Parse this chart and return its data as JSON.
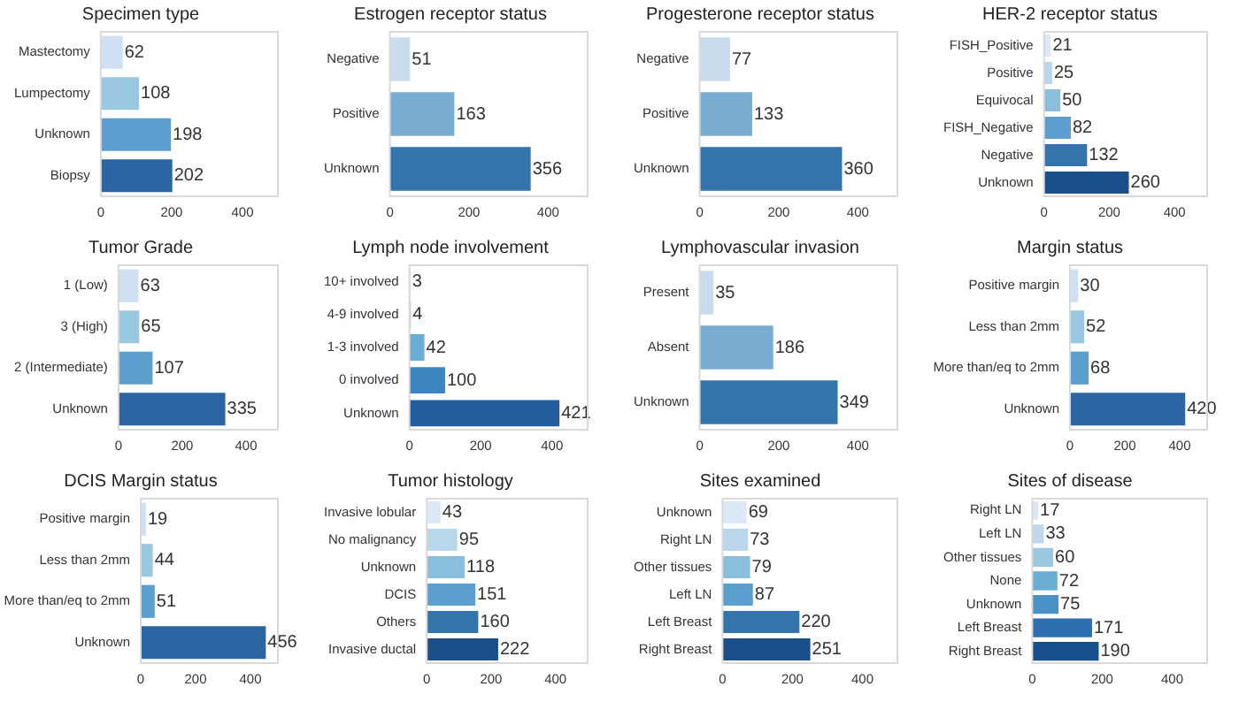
{
  "chart_data": [
    {
      "type": "bar",
      "orientation": "horizontal",
      "title": "Specimen type",
      "categories": [
        "Mastectomy",
        "Lumpectomy",
        "Unknown",
        "Biopsy"
      ],
      "values": [
        62,
        108,
        198,
        202
      ],
      "colors": [
        "#cee0f2",
        "#9ac8e0",
        "#5a9fcd",
        "#2b65a3"
      ],
      "xlim": [
        0,
        500
      ],
      "xticks": [
        0,
        200,
        400
      ],
      "data_labels": true,
      "grid": false
    },
    {
      "type": "bar",
      "orientation": "horizontal",
      "title": "Estrogen receptor status",
      "categories": [
        "Negative",
        "Positive",
        "Unknown"
      ],
      "values": [
        51,
        163,
        356
      ],
      "colors": [
        "#c9dcee",
        "#79aed2",
        "#3474ad"
      ],
      "xlim": [
        0,
        500
      ],
      "xticks": [
        0,
        200,
        400
      ],
      "data_labels": true,
      "grid": false
    },
    {
      "type": "bar",
      "orientation": "horizontal",
      "title": "Progesterone receptor status",
      "categories": [
        "Negative",
        "Positive",
        "Unknown"
      ],
      "values": [
        77,
        133,
        360
      ],
      "colors": [
        "#c9dcee",
        "#79aed2",
        "#3474ad"
      ],
      "xlim": [
        0,
        500
      ],
      "xticks": [
        0,
        200,
        400
      ],
      "data_labels": true,
      "grid": false
    },
    {
      "type": "bar",
      "orientation": "horizontal",
      "title": "HER-2 receptor status",
      "categories": [
        "FISH_Positive",
        "Positive",
        "Equivocal",
        "FISH_Negative",
        "Negative",
        "Unknown"
      ],
      "values": [
        21,
        25,
        50,
        82,
        132,
        260
      ],
      "colors": [
        "#dbe9f6",
        "#bad6eb",
        "#89bedc",
        "#5a9fcd",
        "#3474ad",
        "#1b4f8c"
      ],
      "xlim": [
        0,
        500
      ],
      "xticks": [
        0,
        200,
        400
      ],
      "data_labels": true,
      "grid": false
    },
    {
      "type": "bar",
      "orientation": "horizontal",
      "title": "Tumor Grade",
      "categories": [
        "1 (Low)",
        "3 (High)",
        "2 (Intermediate)",
        "Unknown"
      ],
      "values": [
        63,
        65,
        107,
        335
      ],
      "colors": [
        "#cee0f2",
        "#9ac8e0",
        "#5a9fcd",
        "#2b65a3"
      ],
      "xlim": [
        0,
        500
      ],
      "xticks": [
        0,
        200,
        400
      ],
      "data_labels": true,
      "grid": false
    },
    {
      "type": "bar",
      "orientation": "horizontal",
      "title": "Lymph node involvement",
      "categories": [
        "10+ involved",
        "4-9 involved",
        "1-3 involved",
        "0 involved",
        "Unknown"
      ],
      "values": [
        3,
        4,
        42,
        100,
        421
      ],
      "colors": [
        "#d6e6f4",
        "#abd0e6",
        "#6aaed6",
        "#3d85c0",
        "#235d9e"
      ],
      "xlim": [
        0,
        500
      ],
      "xticks": [
        0,
        200,
        400
      ],
      "data_labels": true,
      "grid": false
    },
    {
      "type": "bar",
      "orientation": "horizontal",
      "title": "Lymphovascular invasion",
      "categories": [
        "Present",
        "Absent",
        "Unknown"
      ],
      "values": [
        35,
        186,
        349
      ],
      "colors": [
        "#c9dcee",
        "#79aed2",
        "#3474ad"
      ],
      "xlim": [
        0,
        500
      ],
      "xticks": [
        0,
        200,
        400
      ],
      "data_labels": true,
      "grid": false
    },
    {
      "type": "bar",
      "orientation": "horizontal",
      "title": "Margin status",
      "categories": [
        "Positive margin",
        "Less than 2mm",
        "More than/eq to 2mm",
        "Unknown"
      ],
      "values": [
        30,
        52,
        68,
        420
      ],
      "colors": [
        "#cee0f2",
        "#9ac8e0",
        "#5a9fcd",
        "#2b65a3"
      ],
      "xlim": [
        0,
        500
      ],
      "xticks": [
        0,
        200,
        400
      ],
      "data_labels": true,
      "grid": false
    },
    {
      "type": "bar",
      "orientation": "horizontal",
      "title": "DCIS Margin status",
      "categories": [
        "Positive margin",
        "Less than 2mm",
        "More than/eq to 2mm",
        "Unknown"
      ],
      "values": [
        19,
        44,
        51,
        456
      ],
      "colors": [
        "#cee0f2",
        "#9ac8e0",
        "#5a9fcd",
        "#2b65a3"
      ],
      "xlim": [
        0,
        500
      ],
      "xticks": [
        0,
        200,
        400
      ],
      "data_labels": true,
      "grid": false
    },
    {
      "type": "bar",
      "orientation": "horizontal",
      "title": "Tumor histology",
      "categories": [
        "Invasive lobular",
        "No malignancy",
        "Unknown",
        "DCIS",
        "Others",
        "Invasive ductal"
      ],
      "values": [
        43,
        95,
        118,
        151,
        160,
        222
      ],
      "colors": [
        "#dbe9f6",
        "#bad6eb",
        "#89bedc",
        "#5a9fcd",
        "#3474ad",
        "#1b4f8c"
      ],
      "xlim": [
        0,
        500
      ],
      "xticks": [
        0,
        200,
        400
      ],
      "data_labels": true,
      "grid": false
    },
    {
      "type": "bar",
      "orientation": "horizontal",
      "title": "Sites examined",
      "categories": [
        "Unknown",
        "Right LN",
        "Other tissues",
        "Left LN",
        "Left Breast",
        "Right Breast"
      ],
      "values": [
        69,
        73,
        79,
        87,
        220,
        251
      ],
      "colors": [
        "#dbe9f6",
        "#bad6eb",
        "#89bedc",
        "#5a9fcd",
        "#3474ad",
        "#1b4f8c"
      ],
      "xlim": [
        0,
        500
      ],
      "xticks": [
        0,
        200,
        400
      ],
      "data_labels": true,
      "grid": false
    },
    {
      "type": "bar",
      "orientation": "horizontal",
      "title": "Sites of disease",
      "categories": [
        "Right LN",
        "Left LN",
        "Other tissues",
        "None",
        "Unknown",
        "Left Breast",
        "Right Breast"
      ],
      "values": [
        17,
        33,
        60,
        72,
        75,
        171,
        190
      ],
      "colors": [
        "#dbe9f6",
        "#c0d8ed",
        "#9ac8e0",
        "#6aaed6",
        "#4a91c6",
        "#2b6fb0",
        "#174f8f"
      ],
      "xlim": [
        0,
        500
      ],
      "xticks": [
        0,
        200,
        400
      ],
      "data_labels": true,
      "grid": false
    }
  ]
}
